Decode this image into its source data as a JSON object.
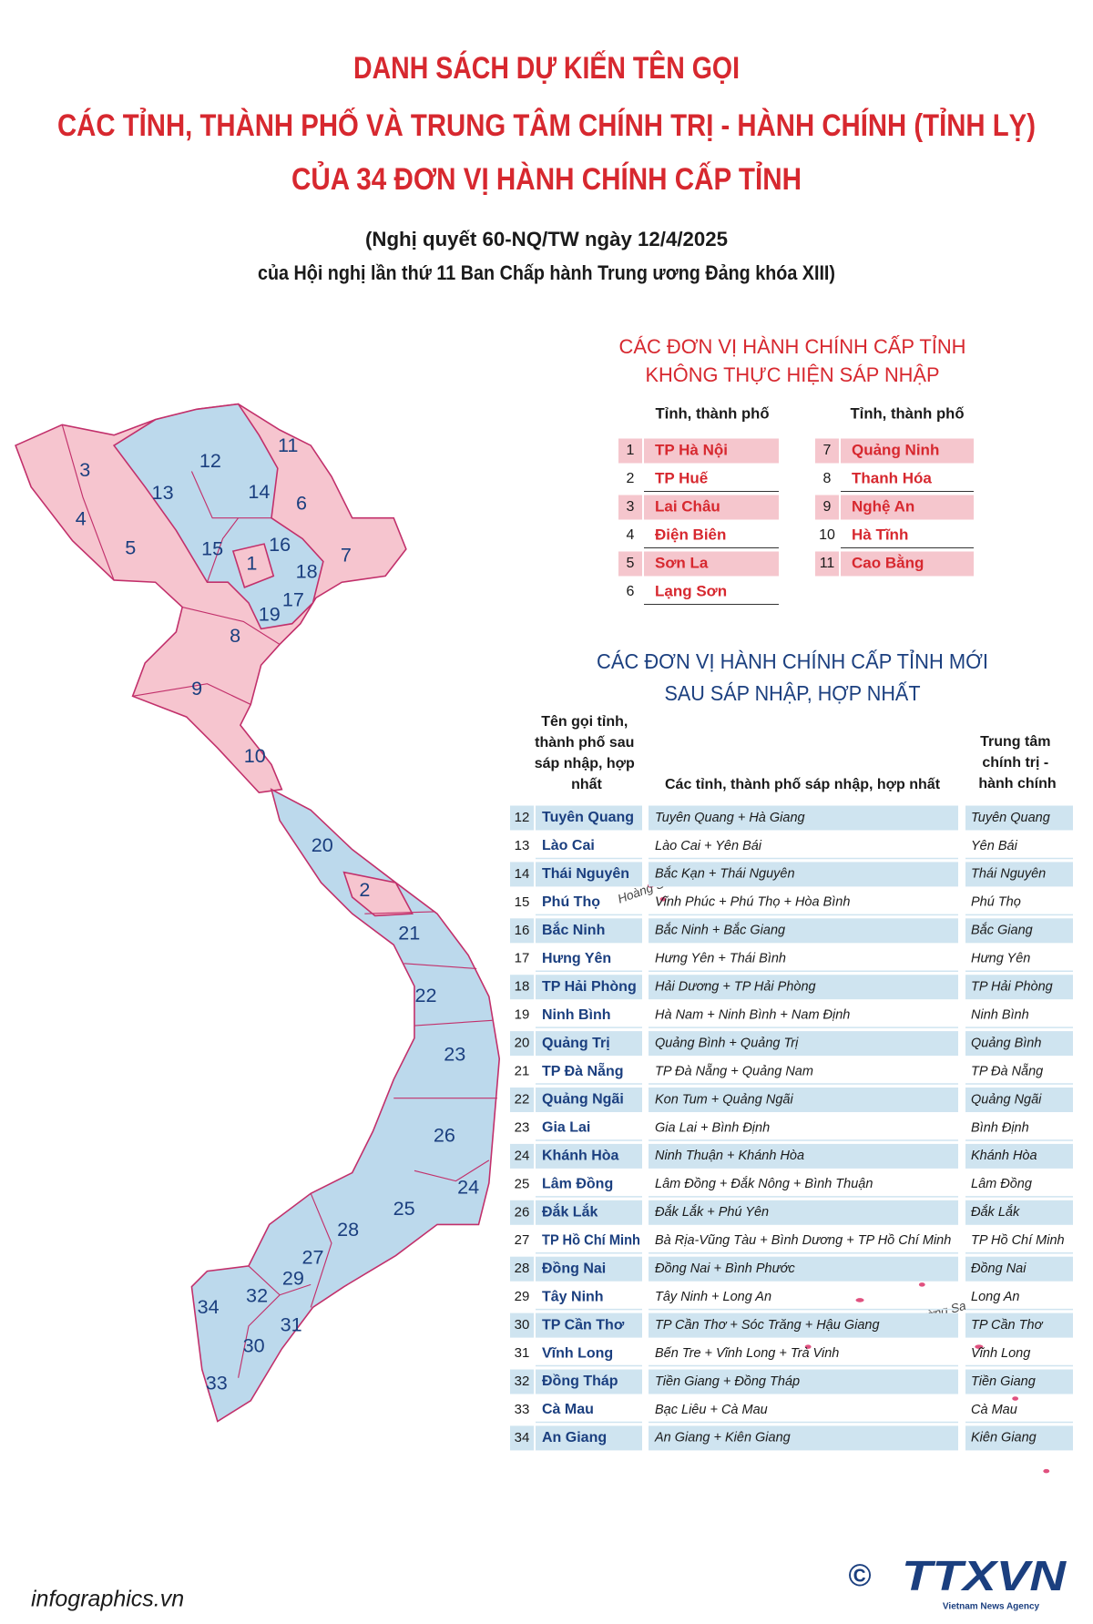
{
  "header": {
    "title_lines": [
      "DANH SÁCH DỰ KIẾN TÊN GỌI",
      "CÁC TỈNH, THÀNH PHỐ VÀ TRUNG TÂM CHÍNH TRỊ - HÀNH CHÍNH (TỈNH LỴ)",
      "CỦA 34 ĐƠN VỊ HÀNH CHÍNH CẤP TỈNH"
    ],
    "subtitle_lines": [
      "(Nghị quyết 60-NQ/TW ngày 12/4/2025",
      "của Hội nghị lần thứ 11 Ban Chấp hành Trung ương Đảng khóa XIII)"
    ]
  },
  "unchanged": {
    "title_lines": [
      "CÁC ĐƠN VỊ HÀNH CHÍNH CẤP TỈNH",
      "KHÔNG THỰC HIỆN SÁP NHẬP"
    ],
    "column_headers": [
      "Tỉnh, thành phố",
      "Tỉnh, thành phố"
    ],
    "rows": [
      [
        1,
        "TP Hà Nội"
      ],
      [
        2,
        "TP Huế"
      ],
      [
        3,
        "Lai Châu"
      ],
      [
        4,
        "Điện Biên"
      ],
      [
        5,
        "Sơn La"
      ],
      [
        6,
        "Lạng Sơn"
      ],
      [
        7,
        "Quảng Ninh"
      ],
      [
        8,
        "Thanh Hóa"
      ],
      [
        9,
        "Nghệ An"
      ],
      [
        10,
        "Hà Tĩnh"
      ],
      [
        11,
        "Cao Bằng"
      ]
    ]
  },
  "merged": {
    "title_lines": [
      "CÁC ĐƠN VỊ HÀNH CHÍNH CẤP TỈNH MỚI",
      "SAU SÁP NHẬP, HỢP NHẤT"
    ],
    "column_headers": [
      "Tên gọi tỉnh, thành phố sau sáp nhập, hợp nhất",
      "Các tỉnh, thành phố sáp nhập, hợp nhất",
      "Trung tâm chính trị - hành chính"
    ],
    "rows": [
      [
        12,
        "Tuyên Quang",
        "Tuyên Quang + Hà Giang",
        "Tuyên Quang"
      ],
      [
        13,
        "Lào Cai",
        "Lào Cai + Yên Bái",
        "Yên Bái"
      ],
      [
        14,
        "Thái Nguyên",
        "Bắc Kạn + Thái Nguyên",
        "Thái Nguyên"
      ],
      [
        15,
        "Phú Thọ",
        "Vĩnh Phúc + Phú Thọ + Hòa Bình",
        "Phú Thọ"
      ],
      [
        16,
        "Bắc Ninh",
        "Bắc Ninh + Bắc Giang",
        "Bắc Giang"
      ],
      [
        17,
        "Hưng Yên",
        "Hưng Yên + Thái Bình",
        "Hưng Yên"
      ],
      [
        18,
        "TP Hải Phòng",
        "Hải Dương + TP Hải Phòng",
        "TP Hải Phòng"
      ],
      [
        19,
        "Ninh Bình",
        "Hà Nam + Ninh Bình + Nam Định",
        "Ninh Bình"
      ],
      [
        20,
        "Quảng Trị",
        "Quảng Bình + Quảng Trị",
        "Quảng Bình"
      ],
      [
        21,
        "TP Đà Nẵng",
        "TP Đà Nẵng + Quảng Nam",
        "TP Đà Nẵng"
      ],
      [
        22,
        "Quảng Ngãi",
        "Kon Tum + Quảng Ngãi",
        "Quảng Ngãi"
      ],
      [
        23,
        "Gia Lai",
        "Gia Lai + Bình Định",
        "Bình Định"
      ],
      [
        24,
        "Khánh Hòa",
        "Ninh Thuận + Khánh Hòa",
        "Khánh Hòa"
      ],
      [
        25,
        "Lâm Đồng",
        "Lâm Đồng + Đắk Nông + Bình Thuận",
        "Lâm Đồng"
      ],
      [
        26,
        "Đắk Lắk",
        "Đắk Lắk + Phú Yên",
        "Đắk Lắk"
      ],
      [
        27,
        "TP Hồ Chí Minh",
        "Bà Rịa-Vũng Tàu + Bình Dương + TP Hồ Chí Minh",
        "TP Hồ Chí Minh"
      ],
      [
        28,
        "Đồng Nai",
        "Đồng Nai + Bình Phước",
        "Đồng Nai"
      ],
      [
        29,
        "Tây Ninh",
        "Tây Ninh + Long An",
        "Long An"
      ],
      [
        30,
        "TP Cần Thơ",
        "TP Cần Thơ + Sóc Trăng + Hậu Giang",
        "TP Cần Thơ"
      ],
      [
        31,
        "Vĩnh Long",
        "Bến Tre + Vĩnh Long + Trà Vinh",
        "Vĩnh Long"
      ],
      [
        32,
        "Đồng Tháp",
        "Tiền Giang + Đồng Tháp",
        "Tiền Giang"
      ],
      [
        33,
        "Cà Mau",
        "Bạc Liêu + Cà Mau",
        "Cà Mau"
      ],
      [
        34,
        "An Giang",
        "An Giang + Kiên Giang",
        "Kiên Giang"
      ]
    ]
  },
  "map": {
    "labels": [
      "1",
      "2",
      "3",
      "4",
      "5",
      "6",
      "7",
      "8",
      "9",
      "10",
      "11",
      "12",
      "13",
      "14",
      "15",
      "16",
      "17",
      "18",
      "19",
      "20",
      "21",
      "22",
      "23",
      "24",
      "25",
      "26",
      "27",
      "28",
      "29",
      "30",
      "31",
      "32",
      "33",
      "34"
    ],
    "islands": [
      "Hoàng Sa",
      "Trường Sa"
    ]
  },
  "footer": {
    "site": "infographics.vn",
    "copyright": "©",
    "logo": "TTXVN",
    "agency": "Vietnam News Agency"
  }
}
